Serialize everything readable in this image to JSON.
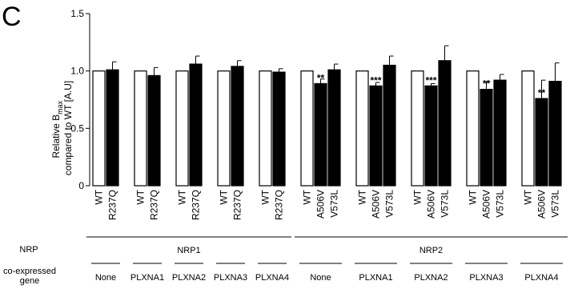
{
  "panel_label": "C",
  "ylabel_line1": "Relative B",
  "ylabel_sub": "max",
  "ylabel_line2": "compared to WT [A.U]",
  "nrp_row_label": "NRP",
  "gene_row_label_line1": "co-expressed",
  "gene_row_label_line2": "gene",
  "nrp_groups": [
    "NRP1",
    "NRP2"
  ],
  "gene_labels": [
    "None",
    "PLXNA1",
    "PLXNA2",
    "PLXNA3",
    "PLXNA4",
    "None",
    "PLXNA1",
    "PLXNA2",
    "PLXNA3",
    "PLXNA4"
  ],
  "colors": {
    "wt_fill": "#ffffff",
    "mutant_fill": "#000000",
    "stroke": "#000000"
  },
  "chart_data": {
    "type": "bar",
    "ylim": [
      0,
      1.5
    ],
    "yticks": [
      0,
      0.5,
      1.0,
      1.5
    ],
    "ytick_labels": [
      "0",
      "0.5",
      "1.0",
      "1.5"
    ],
    "groups": [
      {
        "nrp": "NRP1",
        "gene": "None",
        "bars": [
          {
            "label": "WT",
            "value": 1.0,
            "err": 0,
            "fill": "white"
          },
          {
            "label": "R237Q",
            "value": 1.01,
            "err": 0.07,
            "fill": "black"
          }
        ]
      },
      {
        "nrp": "NRP1",
        "gene": "PLXNA1",
        "bars": [
          {
            "label": "WT",
            "value": 1.0,
            "err": 0,
            "fill": "white"
          },
          {
            "label": "R237Q",
            "value": 0.96,
            "err": 0.07,
            "fill": "black"
          }
        ]
      },
      {
        "nrp": "NRP1",
        "gene": "PLXNA2",
        "bars": [
          {
            "label": "WT",
            "value": 1.0,
            "err": 0,
            "fill": "white"
          },
          {
            "label": "R237Q",
            "value": 1.06,
            "err": 0.07,
            "fill": "black"
          }
        ]
      },
      {
        "nrp": "NRP1",
        "gene": "PLXNA3",
        "bars": [
          {
            "label": "WT",
            "value": 1.0,
            "err": 0,
            "fill": "white"
          },
          {
            "label": "R237Q",
            "value": 1.04,
            "err": 0.05,
            "fill": "black"
          }
        ]
      },
      {
        "nrp": "NRP1",
        "gene": "PLXNA4",
        "bars": [
          {
            "label": "WT",
            "value": 1.0,
            "err": 0,
            "fill": "white"
          },
          {
            "label": "R237Q",
            "value": 0.99,
            "err": 0.03,
            "fill": "black"
          }
        ]
      },
      {
        "nrp": "NRP2",
        "gene": "None",
        "bars": [
          {
            "label": "WT",
            "value": 1.0,
            "err": 0,
            "fill": "white"
          },
          {
            "label": "A506V",
            "value": 0.89,
            "err": 0.04,
            "fill": "black",
            "sig": "**"
          },
          {
            "label": "V573L",
            "value": 1.01,
            "err": 0.05,
            "fill": "black"
          }
        ]
      },
      {
        "nrp": "NRP2",
        "gene": "PLXNA1",
        "bars": [
          {
            "label": "WT",
            "value": 1.0,
            "err": 0,
            "fill": "white"
          },
          {
            "label": "A506V",
            "value": 0.87,
            "err": 0.03,
            "fill": "black",
            "sig": "***"
          },
          {
            "label": "V573L",
            "value": 1.05,
            "err": 0.08,
            "fill": "black"
          }
        ]
      },
      {
        "nrp": "NRP2",
        "gene": "PLXNA2",
        "bars": [
          {
            "label": "WT",
            "value": 1.0,
            "err": 0,
            "fill": "white"
          },
          {
            "label": "A506V",
            "value": 0.87,
            "err": 0.02,
            "fill": "black",
            "sig": "***"
          },
          {
            "label": "V573L",
            "value": 1.09,
            "err": 0.13,
            "fill": "black"
          }
        ]
      },
      {
        "nrp": "NRP2",
        "gene": "PLXNA3",
        "bars": [
          {
            "label": "WT",
            "value": 1.0,
            "err": 0,
            "fill": "white"
          },
          {
            "label": "A506V",
            "value": 0.84,
            "err": 0.07,
            "fill": "black",
            "sig": "**"
          },
          {
            "label": "V573L",
            "value": 0.92,
            "err": 0.05,
            "fill": "black"
          }
        ]
      },
      {
        "nrp": "NRP2",
        "gene": "PLXNA4",
        "bars": [
          {
            "label": "WT",
            "value": 1.0,
            "err": 0,
            "fill": "white"
          },
          {
            "label": "A506V",
            "value": 0.76,
            "err": 0.16,
            "fill": "black",
            "sig": "**"
          },
          {
            "label": "V573L",
            "value": 0.91,
            "err": 0.16,
            "fill": "black"
          }
        ]
      }
    ]
  }
}
